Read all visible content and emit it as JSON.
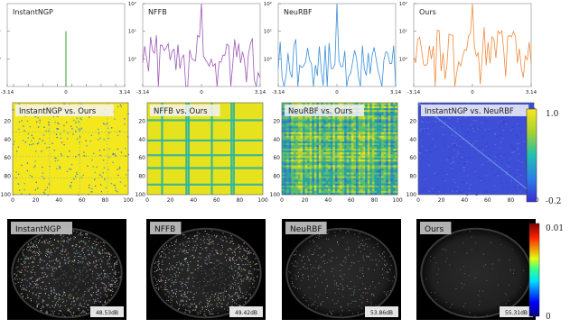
{
  "chart_data": [
    {
      "type": "line",
      "panel": "spectrum",
      "series": [
        {
          "name": "InstantNGP",
          "color": "#2ca02c",
          "peak": 1.0,
          "base": -2.5,
          "spread": 0.0
        },
        {
          "name": "NFFB",
          "color": "#9b59b6",
          "peak": 2.0,
          "base": 0.2,
          "spread": 0.3
        },
        {
          "name": "NeuRBF",
          "color": "#3a8fd8",
          "peak": 2.0,
          "base": 0.0,
          "spread": 0.35
        },
        {
          "name": "Ours",
          "color": "#f08a3c",
          "peak": 2.0,
          "base": 0.4,
          "spread": 0.35
        }
      ],
      "x_ticks": [
        "-3.14",
        "0",
        "3.14"
      ],
      "y_ticks": [
        "10²",
        "10¹",
        "10⁰"
      ],
      "xlim": [
        -3.14,
        3.14
      ],
      "ylim_log10": [
        -1,
        2
      ],
      "y_scale": "log"
    },
    {
      "type": "heatmap",
      "panel": "correlation",
      "titles": [
        "InstantNGP vs. Ours",
        "NFFB vs. Ours",
        "NeuRBF vs. Ours",
        "InstantNGP vs. NeuRBF"
      ],
      "size": 100,
      "y_ticks": [
        "20",
        "40",
        "60",
        "80",
        "100"
      ],
      "x_ticks": [
        "0",
        "20",
        "40",
        "60",
        "80",
        "100"
      ],
      "colorbar": {
        "max_label": "1.0",
        "min_label": "-0.2",
        "min": -0.2,
        "max": 1.0
      }
    },
    {
      "type": "heatmap",
      "panel": "error-maps",
      "titles": [
        "InstantNGP",
        "NFFB",
        "NeuRBF",
        "Ours"
      ],
      "psnr": [
        "48.53dB",
        "49.42dB",
        "53.86dB",
        "55.31dB"
      ],
      "noise_level": [
        0.95,
        0.85,
        0.35,
        0.08
      ],
      "colorbar": {
        "max_label": "0.01",
        "min_label": "0",
        "min": 0,
        "max": 0.01
      }
    }
  ]
}
